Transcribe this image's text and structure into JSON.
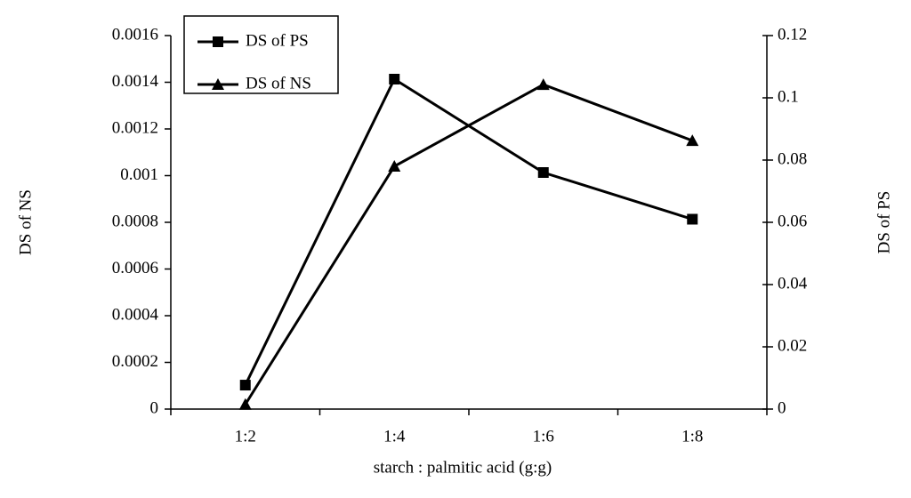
{
  "chart_data": {
    "type": "line",
    "x_label": "starch : palmitic acid (g:g)",
    "y_label": "DS of NS",
    "y2_label": "DS of PS",
    "categories": [
      "1:2",
      "1:4",
      "1:6",
      "1:8"
    ],
    "series": [
      {
        "name": "DS of PS",
        "color": "#000000",
        "marker": "square",
        "axis": "y2",
        "values": [
          0.0077,
          0.106,
          0.076,
          0.061
        ]
      },
      {
        "name": "DS of NS",
        "color": "#000000",
        "marker": "triangle",
        "values": [
          2e-05,
          0.00104,
          0.00139,
          0.00115
        ]
      }
    ],
    "ylim": [
      0,
      0.0016
    ],
    "yticks": [
      0,
      0.0002,
      0.0004,
      0.0006,
      0.0008,
      0.001,
      0.0012,
      0.0014,
      0.0016
    ],
    "y2lim": [
      0,
      0.12
    ],
    "y2ticks": [
      0,
      0.02,
      0.04,
      0.06,
      0.08,
      0.1,
      0.12
    ],
    "legend": "upper left"
  }
}
